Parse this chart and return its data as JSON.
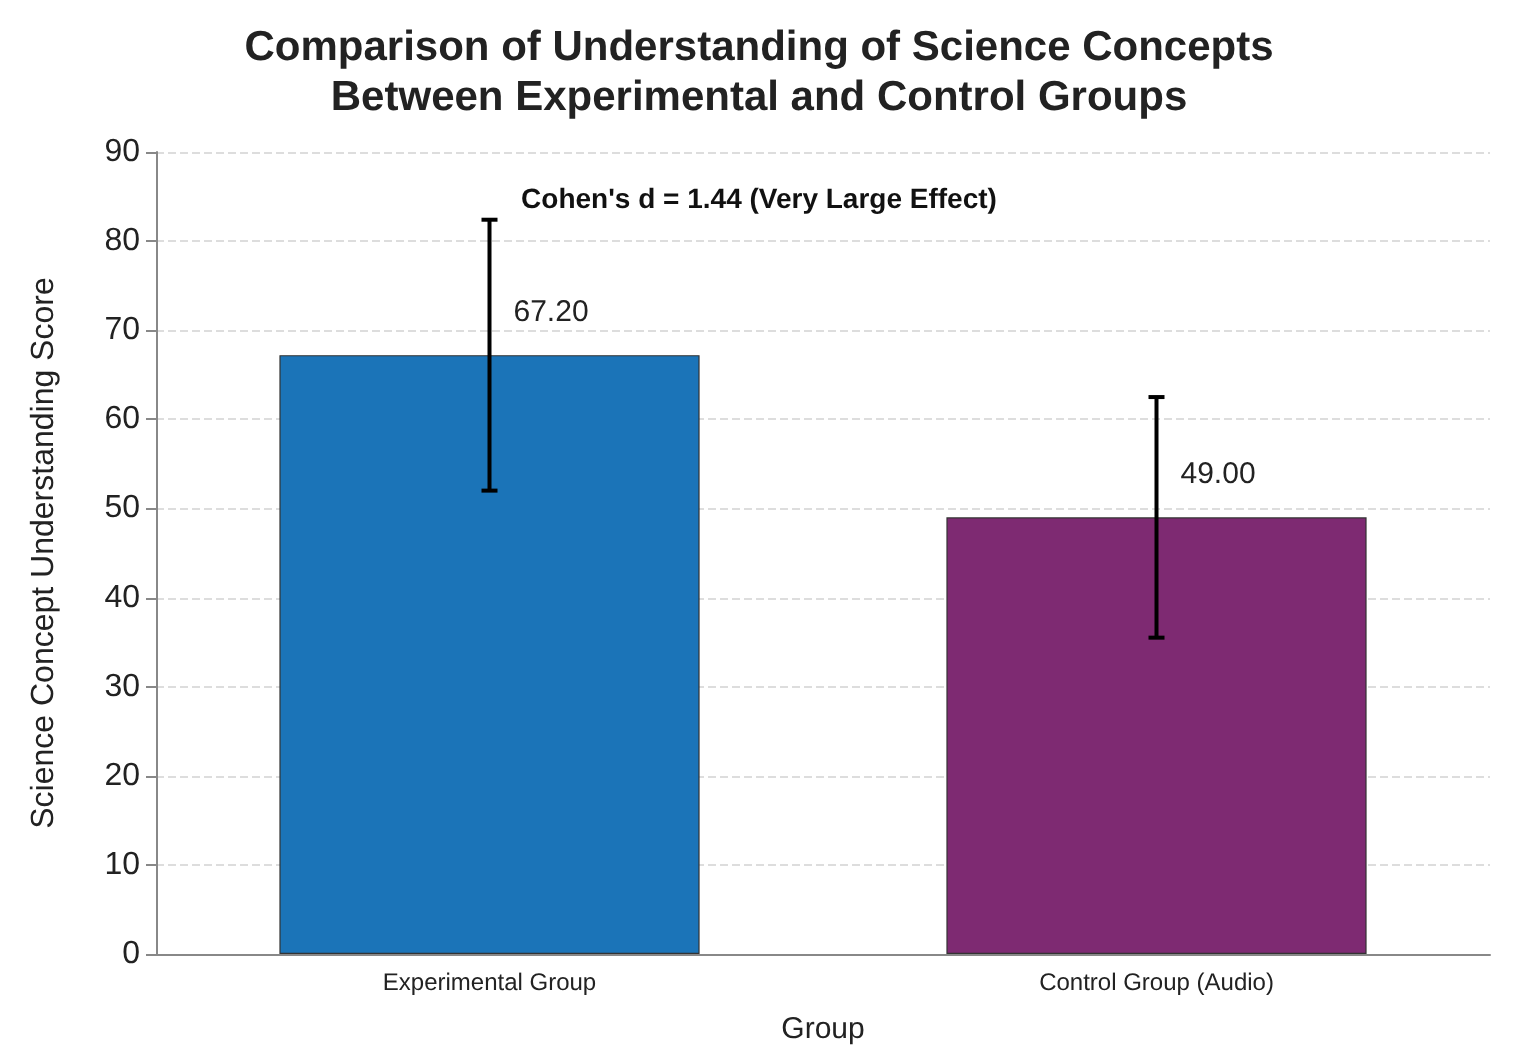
{
  "chart_data": {
    "type": "bar",
    "title": "Comparison of Understanding of Science Concepts\nBetween Experimental and Control Groups",
    "xlabel": "Group",
    "ylabel": "Science Concept Understanding Score",
    "categories": [
      "Experimental Group",
      "Control Group (Audio)"
    ],
    "values": [
      67.2,
      49.0
    ],
    "colors": [
      "#1b74b8",
      "#7e2a72"
    ],
    "errors": [
      15.2,
      13.5
    ],
    "value_labels": [
      "67.20",
      "49.00"
    ],
    "annotations": [
      "Cohen's d = 1.44 (Very Large Effect)"
    ],
    "ylim": [
      0,
      90
    ],
    "yticks": [
      0,
      10,
      20,
      30,
      40,
      50,
      60,
      70,
      80,
      90
    ],
    "grid": "y"
  }
}
